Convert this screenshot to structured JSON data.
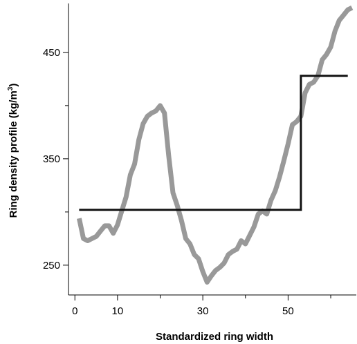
{
  "chart_data": {
    "type": "line",
    "title": "",
    "xlabel": "Standardized ring width",
    "ylabel_main": "Ring density profile (kg/m",
    "ylabel_sup": "3",
    "ylabel_end": ")",
    "xlim": [
      -1.5,
      66
    ],
    "ylim": [
      222,
      496
    ],
    "x_ticks": [
      0,
      10,
      30,
      50
    ],
    "x_minor_ticks": [
      20,
      40,
      60
    ],
    "y_ticks": [
      250,
      350,
      450
    ],
    "y_minor_ticks": [
      300,
      400
    ],
    "grid": false,
    "series": [
      {
        "style": "thick-gray",
        "color": "#999999",
        "x": [
          1,
          2,
          3,
          4,
          5,
          6,
          7,
          8,
          9,
          10,
          11,
          12,
          13,
          14,
          15,
          16,
          17,
          18,
          19,
          20,
          21,
          22,
          23,
          24,
          25,
          26,
          27,
          28,
          29,
          30,
          31,
          32,
          33,
          34,
          35,
          36,
          37,
          38,
          39,
          40,
          41,
          42,
          43,
          44,
          45,
          46,
          47,
          48,
          49,
          50,
          51,
          52,
          53,
          54,
          55,
          56,
          57,
          58,
          59,
          60,
          61,
          62,
          63,
          64,
          65
        ],
        "y": [
          294,
          275,
          273,
          275,
          277,
          282,
          287,
          287,
          280,
          288,
          301,
          314,
          335,
          345,
          368,
          383,
          390,
          393,
          395,
          400,
          393,
          353,
          318,
          306,
          292,
          275,
          270,
          260,
          256,
          244,
          234,
          240,
          245,
          248,
          252,
          260,
          263,
          265,
          273,
          270,
          278,
          286,
          298,
          301,
          298,
          311,
          320,
          333,
          348,
          364,
          382,
          385,
          390,
          412,
          420,
          422,
          428,
          443,
          448,
          455,
          470,
          480,
          485,
          490,
          492
        ]
      },
      {
        "style": "step-black",
        "color": "#111111",
        "x": [
          1,
          53,
          53,
          64
        ],
        "y": [
          302,
          302,
          428,
          428
        ]
      }
    ]
  }
}
